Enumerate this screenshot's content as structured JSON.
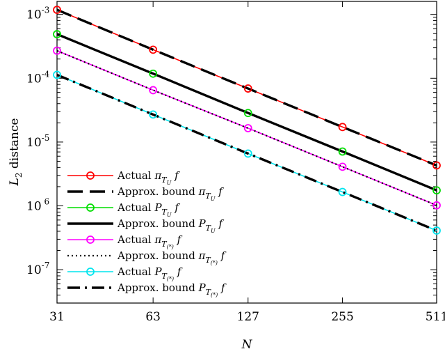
{
  "chart_data": {
    "type": "line",
    "xlabel": "N",
    "ylabel": "L2 distance",
    "xscale": "log",
    "yscale": "log",
    "x": [
      31,
      63,
      127,
      255,
      511
    ],
    "xlim": [
      31,
      511
    ],
    "ylim": [
      3e-08,
      0.0016
    ],
    "x_tick_labels": [
      "31",
      "63",
      "127",
      "255",
      "511"
    ],
    "y_tick_labels": [
      "10-3",
      "10-4",
      "10-5",
      "10 6",
      "10-7"
    ],
    "legend_position": "lower-left",
    "series": [
      {
        "name": "Actual π_{T_U} f",
        "color": "#ff0000",
        "values": [
          0.00118,
          0.00028,
          6.9e-05,
          1.72e-05,
          4.3e-06
        ],
        "style": "solid",
        "marker": "circle"
      },
      {
        "name": "Approx. bound π_{T_U} f",
        "color": "#000000",
        "values": [
          0.00118,
          0.00028,
          6.9e-05,
          1.72e-05,
          4.3e-06
        ],
        "style": "dashed"
      },
      {
        "name": "Actual P_{T_U} f",
        "color": "#00dd00",
        "values": [
          0.00049,
          0.000118,
          2.85e-05,
          7.1e-06,
          1.75e-06
        ],
        "style": "solid",
        "marker": "circle"
      },
      {
        "name": "Approx. bound P_{T_U} f",
        "color": "#000000",
        "values": [
          0.00049,
          0.000118,
          2.85e-05,
          7.1e-06,
          1.75e-06
        ],
        "style": "solid"
      },
      {
        "name": "Actual π_{T(*)} f",
        "color": "#ff00ff",
        "values": [
          0.00027,
          6.5e-05,
          1.65e-05,
          4.1e-06,
          1.02e-06
        ],
        "style": "solid",
        "marker": "circle"
      },
      {
        "name": "Approx. bound π_{T(*)} f",
        "color": "#000000",
        "values": [
          0.00027,
          6.5e-05,
          1.65e-05,
          4.1e-06,
          1.02e-06
        ],
        "style": "dotted"
      },
      {
        "name": "Actual P_{T(*)} f",
        "color": "#00e5ee",
        "values": [
          0.000113,
          2.7e-05,
          6.6e-06,
          1.65e-06,
          4.1e-07
        ],
        "style": "solid",
        "marker": "circle"
      },
      {
        "name": "Approx. bound P_{T(*)} f",
        "color": "#000000",
        "values": [
          0.000113,
          2.7e-05,
          6.6e-06,
          1.65e-06,
          4.1e-07
        ],
        "style": "dashdot"
      }
    ],
    "legend": [
      {
        "label": "Actual",
        "sym": "π",
        "sub": "T",
        "subsub": "U",
        "post": "f",
        "color": "#ff0000",
        "style": "solid",
        "marker": true
      },
      {
        "label": "Approx. bound",
        "sym": "π",
        "sub": "T",
        "subsub": "U",
        "post": "f",
        "color": "#000000",
        "style": "dashed",
        "marker": false
      },
      {
        "label": "Actual",
        "sym": "P",
        "sub": "T",
        "subsub": "U",
        "post": "f",
        "color": "#00dd00",
        "style": "solid",
        "marker": true
      },
      {
        "label": "Approx. bound",
        "sym": "P",
        "sub": "T",
        "subsub": "U",
        "post": "f",
        "color": "#000000",
        "style": "solid",
        "marker": false
      },
      {
        "label": "Actual",
        "sym": "π",
        "sub": "T",
        "subsub": "(*)",
        "post": "f",
        "color": "#ff00ff",
        "style": "solid",
        "marker": true
      },
      {
        "label": "Approx. bound",
        "sym": "π",
        "sub": "T",
        "subsub": "(*)",
        "post": "f",
        "color": "#000000",
        "style": "dotted",
        "marker": false
      },
      {
        "label": "Actual",
        "sym": "P",
        "sub": "T",
        "subsub": "(*)",
        "post": "f",
        "color": "#00e5ee",
        "style": "solid",
        "marker": true
      },
      {
        "label": "Approx. bound",
        "sym": "P",
        "sub": "T",
        "subsub": "(*)",
        "post": "f",
        "color": "#000000",
        "style": "dashdot",
        "marker": false
      }
    ]
  }
}
